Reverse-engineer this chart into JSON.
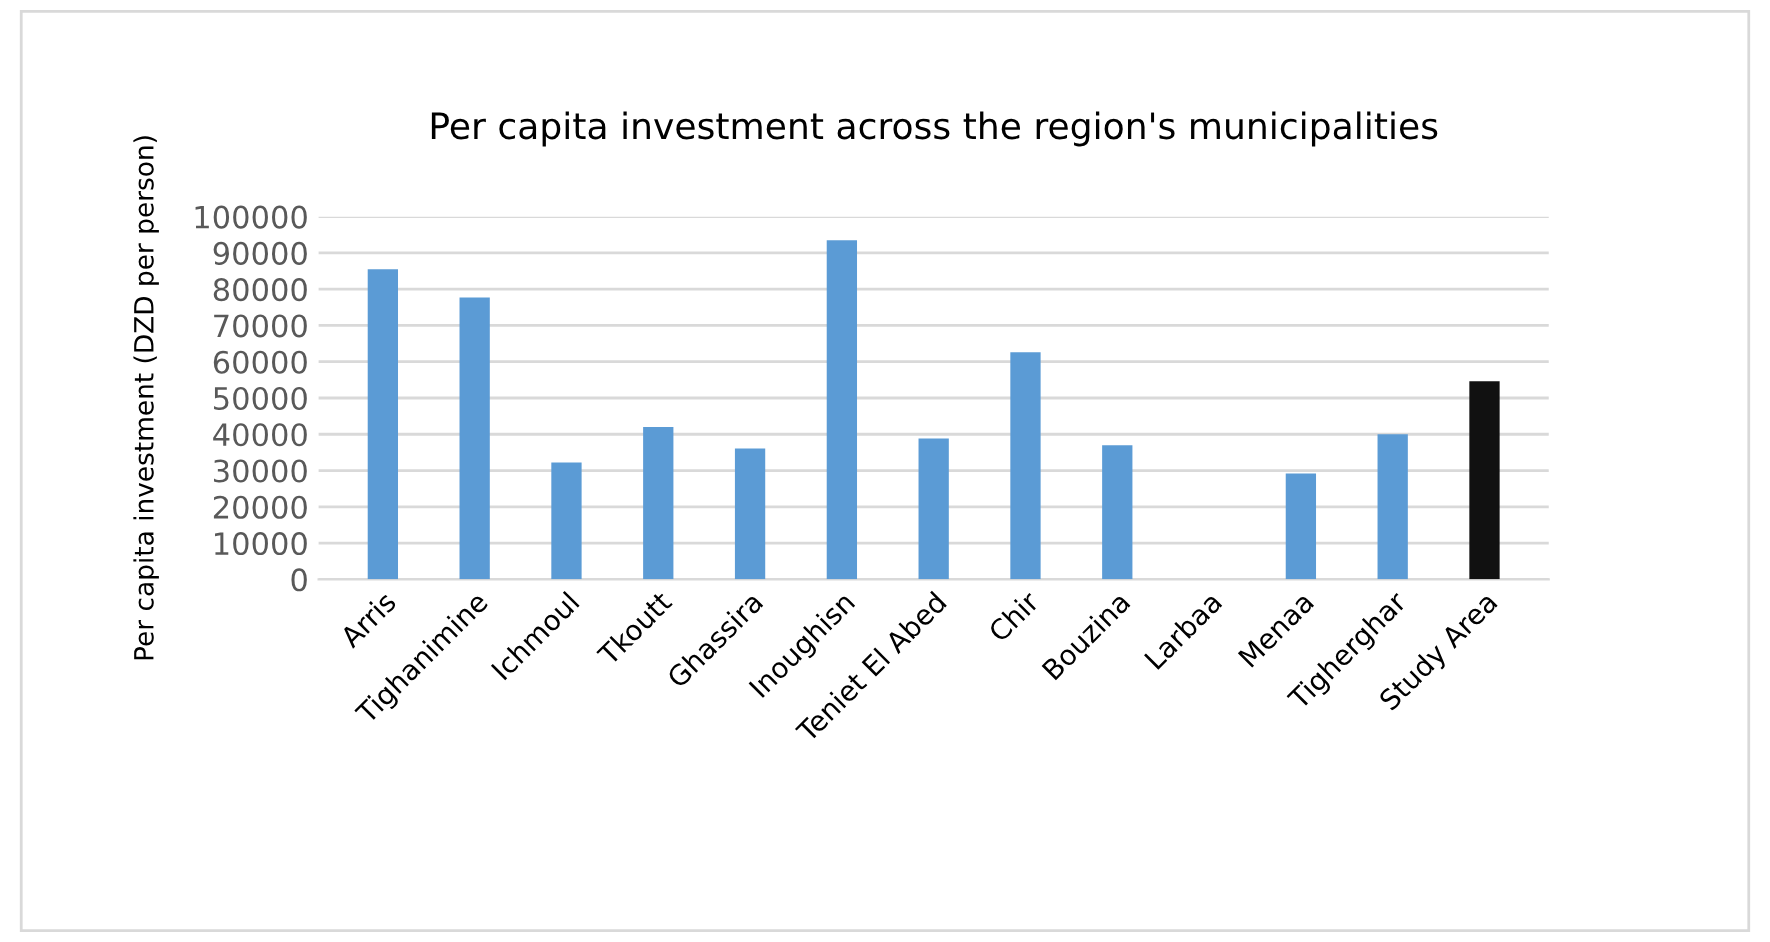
{
  "chart_data": {
    "type": "bar",
    "title": "Per capita investment across the region's municipalities",
    "ylabel": "Per capita investment (DZD per person)",
    "categories": [
      "Arris",
      "Tighanimine",
      "Ichmoul",
      "Tkoutt",
      "Ghassira",
      "Inoughisn",
      "Teniet El Abed",
      "Chir",
      "Bouzina",
      "Larbaa",
      "Menaa",
      "Tigherghar",
      "Study Area"
    ],
    "values": [
      85500,
      77700,
      32200,
      42000,
      36100,
      93500,
      38800,
      62600,
      37000,
      0,
      29200,
      40000,
      54600
    ],
    "colors": [
      "#5b9bd5",
      "#5b9bd5",
      "#5b9bd5",
      "#5b9bd5",
      "#5b9bd5",
      "#5b9bd5",
      "#5b9bd5",
      "#5b9bd5",
      "#5b9bd5",
      "#5b9bd5",
      "#5b9bd5",
      "#5b9bd5",
      "#111111"
    ],
    "ylim": [
      0,
      100000
    ],
    "yticks": [
      0,
      10000,
      20000,
      30000,
      40000,
      50000,
      60000,
      70000,
      80000,
      90000,
      100000
    ],
    "grid": "y"
  }
}
